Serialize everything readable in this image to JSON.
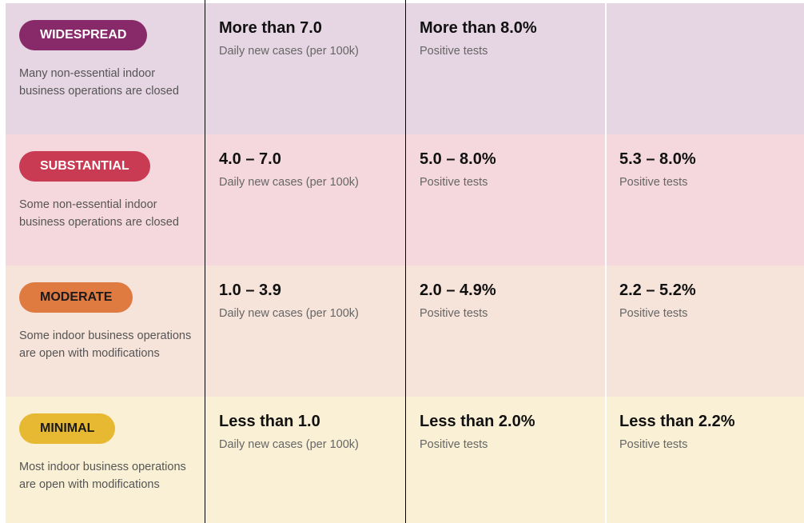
{
  "rows": [
    {
      "tier": "WIDESPREAD",
      "description": "Many non-essential indoor business operations are closed",
      "cells": [
        {
          "value": "More than 7.0",
          "label": "Daily new cases (per 100k)"
        },
        {
          "value": "More than 8.0%",
          "label": "Positive tests"
        }
      ]
    },
    {
      "tier": "SUBSTANTIAL",
      "description": "Some non-essential indoor business operations are closed",
      "cells": [
        {
          "value": "4.0 – 7.0",
          "label": "Daily new cases (per 100k)"
        },
        {
          "value": "5.0 – 8.0%",
          "label": "Positive tests"
        },
        {
          "value": "5.3 – 8.0%",
          "label": "Positive tests"
        }
      ]
    },
    {
      "tier": "MODERATE",
      "description": "Some indoor business operations are open with modifications",
      "cells": [
        {
          "value": "1.0 – 3.9",
          "label": "Daily new cases (per 100k)"
        },
        {
          "value": "2.0 – 4.9%",
          "label": "Positive tests"
        },
        {
          "value": "2.2 – 5.2%",
          "label": "Positive tests"
        }
      ]
    },
    {
      "tier": "MINIMAL",
      "description": "Most indoor business operations are open with modifications",
      "cells": [
        {
          "value": "Less than 1.0",
          "label": "Daily new cases (per 100k)"
        },
        {
          "value": "Less than 2.0%",
          "label": "Positive tests"
        },
        {
          "value": "Less than 2.2%",
          "label": "Positive tests"
        }
      ]
    }
  ]
}
